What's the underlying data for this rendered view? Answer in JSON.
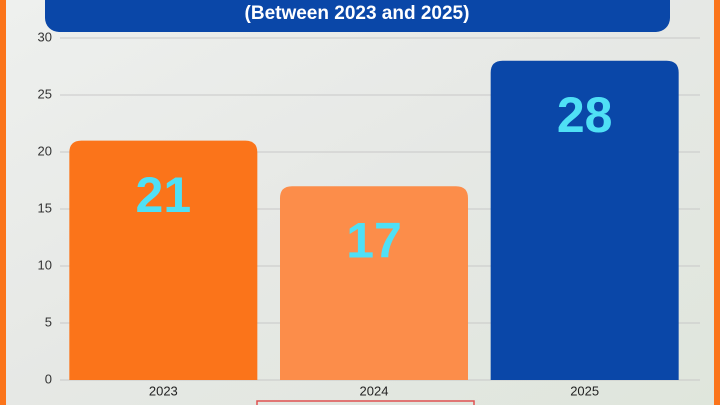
{
  "chart_data": {
    "type": "bar",
    "title": "(Between 2023 and 2025)",
    "categories": [
      "2023",
      "2024",
      "2025"
    ],
    "values": [
      21,
      17,
      28
    ],
    "colors": [
      "#fb741a",
      "#fc8d4a",
      "#0a47a8"
    ],
    "label_color": "#4fe0f5",
    "ylim": [
      0,
      30
    ],
    "yticks": [
      0,
      5,
      10,
      15,
      20,
      25,
      30
    ],
    "grid": true
  }
}
